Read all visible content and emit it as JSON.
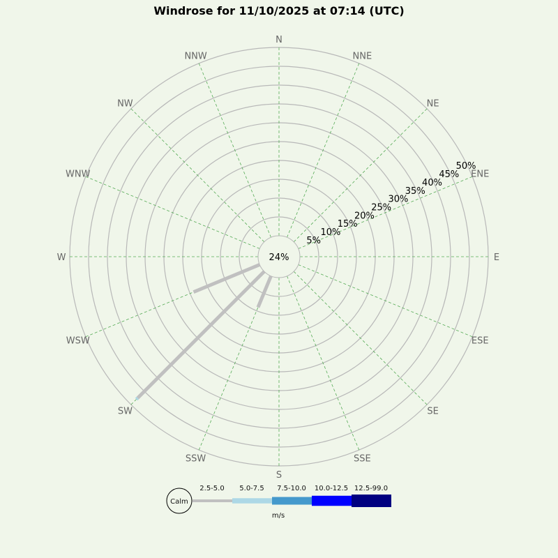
{
  "chart_data": {
    "type": "windrose",
    "title": "Windrose for 11/10/2025 at 07:14 (UTC)",
    "calm_label": "24%",
    "calm_percent": 24,
    "directions": [
      "N",
      "NNE",
      "NE",
      "ENE",
      "E",
      "ESE",
      "SE",
      "SSE",
      "S",
      "SSW",
      "SW",
      "WSW",
      "W",
      "WNW",
      "NW",
      "NNW"
    ],
    "radial_ticks": [
      "5%",
      "10%",
      "15%",
      "20%",
      "25%",
      "30%",
      "35%",
      "40%",
      "45%",
      "50%"
    ],
    "radial_max_percent": 50,
    "grid": true,
    "speed_bins": [
      {
        "label": "2.5-5.0",
        "color": "#c0c0c0"
      },
      {
        "label": "5.0-7.5",
        "color": "#add8e6"
      },
      {
        "label": "7.5-10.0",
        "color": "#4499cc"
      },
      {
        "label": "10.0-12.5",
        "color": "#0000ff"
      },
      {
        "label": "12.5-99.0",
        "color": "#000080"
      }
    ],
    "series": [
      {
        "direction": "WSW",
        "values": [
          19,
          0,
          0,
          0,
          0
        ]
      },
      {
        "direction": "SW",
        "values": [
          47.5,
          0.5,
          0,
          0,
          0
        ]
      },
      {
        "direction": "SSW",
        "values": [
          9,
          0,
          0,
          0,
          0
        ]
      }
    ],
    "legend": {
      "calm": "Calm",
      "unit": "m/s",
      "placement": "bottom"
    }
  }
}
